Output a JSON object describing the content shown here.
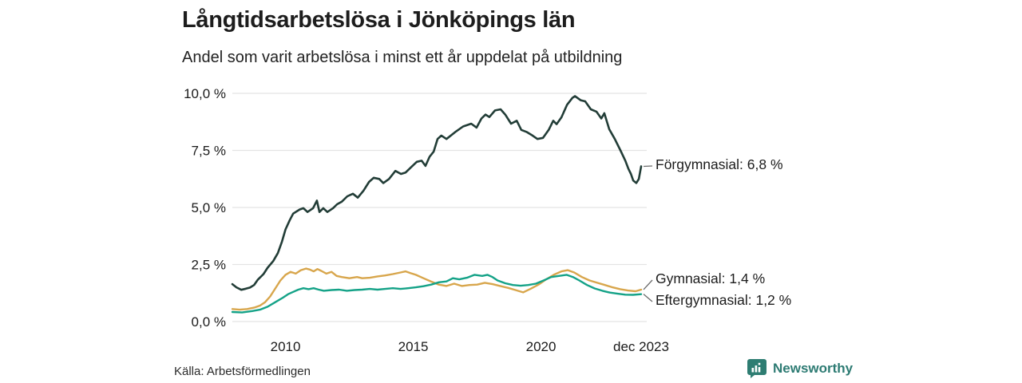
{
  "header": {
    "title": "Långtidsarbetslösa i Jönköpings län",
    "subtitle": "Andel som varit arbetslösa i minst ett år uppdelat på utbildning"
  },
  "footer": {
    "source": "Källa: Arbetsförmedlingen",
    "brand": "Newsworthy",
    "brand_color": "#2d7b73",
    "logo_icon": "bar-chart-speech-bubble-icon"
  },
  "chart_data": {
    "type": "line",
    "title": "Långtidsarbetslösa i Jönköpings län",
    "subtitle": "Andel som varit arbetslösa i minst ett år uppdelat på utbildning",
    "xlabel": "",
    "ylabel": "",
    "xlim": [
      2007.92,
      2023.92
    ],
    "ylim": [
      0,
      10
    ],
    "grid": "horizontal",
    "gridline_color": "#e4e4e4",
    "connector_color": "#6b6b6b",
    "legend_position": "right-end-labels",
    "yticks": [
      {
        "value": 0,
        "label": "0,0 %"
      },
      {
        "value": 2.5,
        "label": "2,5 %"
      },
      {
        "value": 5,
        "label": "5,0 %"
      },
      {
        "value": 7.5,
        "label": "7,5 %"
      },
      {
        "value": 10,
        "label": "10,0 %"
      }
    ],
    "xticks": [
      {
        "value": 2010,
        "label": "2010"
      },
      {
        "value": 2015,
        "label": "2015"
      },
      {
        "value": 2020,
        "label": "2020"
      },
      {
        "value": 2023.92,
        "label": "dec 2023"
      }
    ],
    "series": [
      {
        "name": "Förgymnasial",
        "color": "#223d37",
        "stroke_width": 2.6,
        "end_label": "Förgymnasial: 6,8 %",
        "end_value": "6,8 %",
        "points": [
          [
            2007.92,
            1.64
          ],
          [
            2008.08,
            1.5
          ],
          [
            2008.27,
            1.39
          ],
          [
            2008.45,
            1.44
          ],
          [
            2008.61,
            1.49
          ],
          [
            2008.77,
            1.6
          ],
          [
            2008.92,
            1.84
          ],
          [
            2009.14,
            2.08
          ],
          [
            2009.3,
            2.36
          ],
          [
            2009.52,
            2.65
          ],
          [
            2009.7,
            3.0
          ],
          [
            2009.86,
            3.5
          ],
          [
            2010.0,
            4.04
          ],
          [
            2010.17,
            4.45
          ],
          [
            2010.3,
            4.73
          ],
          [
            2010.55,
            4.91
          ],
          [
            2010.7,
            4.97
          ],
          [
            2010.86,
            4.8
          ],
          [
            2011.08,
            4.97
          ],
          [
            2011.23,
            5.3
          ],
          [
            2011.33,
            4.8
          ],
          [
            2011.48,
            4.97
          ],
          [
            2011.64,
            4.8
          ],
          [
            2011.86,
            4.97
          ],
          [
            2012.02,
            5.14
          ],
          [
            2012.2,
            5.25
          ],
          [
            2012.42,
            5.49
          ],
          [
            2012.64,
            5.6
          ],
          [
            2012.83,
            5.43
          ],
          [
            2013.05,
            5.73
          ],
          [
            2013.27,
            6.12
          ],
          [
            2013.45,
            6.3
          ],
          [
            2013.67,
            6.25
          ],
          [
            2013.83,
            6.07
          ],
          [
            2014.05,
            6.25
          ],
          [
            2014.3,
            6.6
          ],
          [
            2014.52,
            6.47
          ],
          [
            2014.7,
            6.53
          ],
          [
            2014.92,
            6.77
          ],
          [
            2015.14,
            7.0
          ],
          [
            2015.33,
            7.05
          ],
          [
            2015.48,
            6.82
          ],
          [
            2015.64,
            7.22
          ],
          [
            2015.8,
            7.45
          ],
          [
            2015.95,
            8.0
          ],
          [
            2016.1,
            8.15
          ],
          [
            2016.3,
            8.0
          ],
          [
            2016.64,
            8.3
          ],
          [
            2016.95,
            8.55
          ],
          [
            2017.27,
            8.67
          ],
          [
            2017.48,
            8.5
          ],
          [
            2017.67,
            8.9
          ],
          [
            2017.83,
            9.07
          ],
          [
            2017.98,
            8.96
          ],
          [
            2018.2,
            9.25
          ],
          [
            2018.42,
            9.3
          ],
          [
            2018.6,
            9.07
          ],
          [
            2018.83,
            8.67
          ],
          [
            2019.05,
            8.8
          ],
          [
            2019.23,
            8.4
          ],
          [
            2019.45,
            8.3
          ],
          [
            2019.67,
            8.15
          ],
          [
            2019.86,
            8.0
          ],
          [
            2020.08,
            8.05
          ],
          [
            2020.3,
            8.4
          ],
          [
            2020.48,
            8.8
          ],
          [
            2020.61,
            8.65
          ],
          [
            2020.8,
            8.95
          ],
          [
            2021.02,
            9.5
          ],
          [
            2021.23,
            9.8
          ],
          [
            2021.33,
            9.88
          ],
          [
            2021.55,
            9.7
          ],
          [
            2021.73,
            9.65
          ],
          [
            2021.95,
            9.3
          ],
          [
            2022.17,
            9.2
          ],
          [
            2022.36,
            8.9
          ],
          [
            2022.48,
            9.13
          ],
          [
            2022.67,
            8.43
          ],
          [
            2022.89,
            8.0
          ],
          [
            2023.11,
            7.5
          ],
          [
            2023.3,
            7.05
          ],
          [
            2023.42,
            6.7
          ],
          [
            2023.52,
            6.47
          ],
          [
            2023.61,
            6.18
          ],
          [
            2023.73,
            6.07
          ],
          [
            2023.83,
            6.25
          ],
          [
            2023.92,
            6.8
          ]
        ]
      },
      {
        "name": "Gymnasial",
        "color": "#d8a64c",
        "stroke_width": 2.4,
        "end_label": "Gymnasial: 1,4 %",
        "end_value": "1,4 %",
        "points": [
          [
            2007.92,
            0.55
          ],
          [
            2008.2,
            0.52
          ],
          [
            2008.5,
            0.55
          ],
          [
            2008.8,
            0.62
          ],
          [
            2009.0,
            0.7
          ],
          [
            2009.2,
            0.85
          ],
          [
            2009.4,
            1.1
          ],
          [
            2009.6,
            1.45
          ],
          [
            2009.8,
            1.8
          ],
          [
            2010.0,
            2.05
          ],
          [
            2010.2,
            2.18
          ],
          [
            2010.4,
            2.1
          ],
          [
            2010.6,
            2.25
          ],
          [
            2010.8,
            2.32
          ],
          [
            2010.95,
            2.28
          ],
          [
            2011.1,
            2.2
          ],
          [
            2011.25,
            2.3
          ],
          [
            2011.4,
            2.22
          ],
          [
            2011.6,
            2.1
          ],
          [
            2011.8,
            2.18
          ],
          [
            2012.0,
            2.0
          ],
          [
            2012.2,
            1.95
          ],
          [
            2012.5,
            1.9
          ],
          [
            2012.8,
            1.95
          ],
          [
            2013.0,
            1.9
          ],
          [
            2013.3,
            1.92
          ],
          [
            2013.6,
            1.98
          ],
          [
            2013.9,
            2.02
          ],
          [
            2014.2,
            2.08
          ],
          [
            2014.5,
            2.15
          ],
          [
            2014.7,
            2.2
          ],
          [
            2014.9,
            2.12
          ],
          [
            2015.1,
            2.05
          ],
          [
            2015.4,
            1.9
          ],
          [
            2015.7,
            1.75
          ],
          [
            2016.0,
            1.62
          ],
          [
            2016.3,
            1.56
          ],
          [
            2016.6,
            1.66
          ],
          [
            2016.9,
            1.56
          ],
          [
            2017.2,
            1.6
          ],
          [
            2017.5,
            1.62
          ],
          [
            2017.8,
            1.7
          ],
          [
            2018.1,
            1.64
          ],
          [
            2018.4,
            1.56
          ],
          [
            2018.7,
            1.48
          ],
          [
            2019.0,
            1.38
          ],
          [
            2019.3,
            1.28
          ],
          [
            2019.6,
            1.44
          ],
          [
            2019.9,
            1.62
          ],
          [
            2020.2,
            1.85
          ],
          [
            2020.5,
            2.05
          ],
          [
            2020.8,
            2.2
          ],
          [
            2021.05,
            2.25
          ],
          [
            2021.3,
            2.15
          ],
          [
            2021.6,
            1.95
          ],
          [
            2021.9,
            1.8
          ],
          [
            2022.2,
            1.7
          ],
          [
            2022.5,
            1.6
          ],
          [
            2022.8,
            1.5
          ],
          [
            2023.1,
            1.42
          ],
          [
            2023.4,
            1.36
          ],
          [
            2023.7,
            1.33
          ],
          [
            2023.92,
            1.4
          ]
        ]
      },
      {
        "name": "Eftergymnasial",
        "color": "#14a287",
        "stroke_width": 2.4,
        "end_label": "Eftergymnasial: 1,2 %",
        "end_value": "1,2 %",
        "points": [
          [
            2007.92,
            0.42
          ],
          [
            2008.3,
            0.4
          ],
          [
            2008.7,
            0.46
          ],
          [
            2009.0,
            0.52
          ],
          [
            2009.3,
            0.65
          ],
          [
            2009.6,
            0.85
          ],
          [
            2009.9,
            1.05
          ],
          [
            2010.1,
            1.2
          ],
          [
            2010.3,
            1.3
          ],
          [
            2010.5,
            1.4
          ],
          [
            2010.7,
            1.46
          ],
          [
            2010.9,
            1.42
          ],
          [
            2011.1,
            1.46
          ],
          [
            2011.3,
            1.4
          ],
          [
            2011.5,
            1.35
          ],
          [
            2011.8,
            1.38
          ],
          [
            2012.1,
            1.4
          ],
          [
            2012.4,
            1.35
          ],
          [
            2012.7,
            1.38
          ],
          [
            2013.0,
            1.4
          ],
          [
            2013.3,
            1.43
          ],
          [
            2013.6,
            1.4
          ],
          [
            2013.9,
            1.43
          ],
          [
            2014.2,
            1.46
          ],
          [
            2014.5,
            1.43
          ],
          [
            2014.8,
            1.46
          ],
          [
            2015.1,
            1.5
          ],
          [
            2015.4,
            1.55
          ],
          [
            2015.7,
            1.62
          ],
          [
            2016.0,
            1.72
          ],
          [
            2016.3,
            1.76
          ],
          [
            2016.55,
            1.9
          ],
          [
            2016.8,
            1.85
          ],
          [
            2017.1,
            1.92
          ],
          [
            2017.4,
            2.05
          ],
          [
            2017.7,
            2.0
          ],
          [
            2017.9,
            2.05
          ],
          [
            2018.1,
            1.95
          ],
          [
            2018.3,
            1.8
          ],
          [
            2018.6,
            1.68
          ],
          [
            2018.9,
            1.6
          ],
          [
            2019.2,
            1.57
          ],
          [
            2019.5,
            1.6
          ],
          [
            2019.8,
            1.66
          ],
          [
            2020.1,
            1.8
          ],
          [
            2020.4,
            1.95
          ],
          [
            2020.7,
            2.0
          ],
          [
            2021.0,
            2.05
          ],
          [
            2021.25,
            1.95
          ],
          [
            2021.5,
            1.8
          ],
          [
            2021.8,
            1.6
          ],
          [
            2022.1,
            1.45
          ],
          [
            2022.4,
            1.35
          ],
          [
            2022.7,
            1.27
          ],
          [
            2023.0,
            1.22
          ],
          [
            2023.3,
            1.18
          ],
          [
            2023.6,
            1.17
          ],
          [
            2023.92,
            1.2
          ]
        ]
      }
    ]
  }
}
